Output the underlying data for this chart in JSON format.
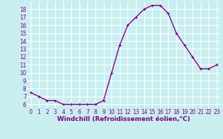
{
  "x": [
    0,
    1,
    2,
    3,
    4,
    5,
    6,
    7,
    8,
    9,
    10,
    11,
    12,
    13,
    14,
    15,
    16,
    17,
    18,
    19,
    20,
    21,
    22,
    23
  ],
  "y": [
    7.5,
    7.0,
    6.5,
    6.5,
    6.0,
    6.0,
    6.0,
    6.0,
    6.0,
    6.5,
    10.0,
    13.5,
    16.0,
    17.0,
    18.0,
    18.5,
    18.5,
    17.5,
    15.0,
    13.5,
    12.0,
    10.5,
    10.5,
    11.0
  ],
  "line_color": "#800080",
  "marker": "+",
  "marker_size": 3,
  "linewidth": 1.0,
  "bg_color": "#c8eef0",
  "grid_color": "#ffffff",
  "xlabel": "Windchill (Refroidissement éolien,°C)",
  "xlabel_color": "#800080",
  "xlabel_fontsize": 6.5,
  "tick_color": "#800080",
  "tick_fontsize": 5.5,
  "ylim": [
    5.5,
    19.0
  ],
  "xlim": [
    -0.5,
    23.5
  ],
  "yticks": [
    6,
    7,
    8,
    9,
    10,
    11,
    12,
    13,
    14,
    15,
    16,
    17,
    18
  ],
  "xticks": [
    0,
    1,
    2,
    3,
    4,
    5,
    6,
    7,
    8,
    9,
    10,
    11,
    12,
    13,
    14,
    15,
    16,
    17,
    18,
    19,
    20,
    21,
    22,
    23
  ]
}
